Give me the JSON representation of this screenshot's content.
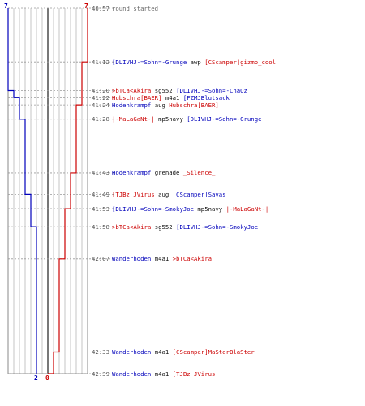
{
  "colors": {
    "team_blue": "#0000bb",
    "team_red": "#cc0000",
    "text_black": "#111111",
    "info_gray": "#666666",
    "time_gray": "#555555",
    "grid_gray": "#b8b8b8",
    "frame_gray": "#888888",
    "center_line": "#555555"
  },
  "scores": {
    "top_left": "7",
    "top_right": "7",
    "bottom_blue": "2",
    "bottom_red": "0"
  },
  "chart_data": {
    "type": "line",
    "y_axis_meaning": "round time (minutes:seconds)",
    "x_axis_meaning": "players remaining per team",
    "xlim": [
      -7,
      7
    ],
    "series": [
      {
        "color": "#0000bb",
        "points": [
          {
            "time": "40:57",
            "alive": 7
          },
          {
            "time": "41:20",
            "alive": 6
          },
          {
            "time": "41:22",
            "alive": 5
          },
          {
            "time": "41:28",
            "alive": 4
          },
          {
            "time": "41:49",
            "alive": 3
          },
          {
            "time": "41:58",
            "alive": 2
          },
          {
            "time": "42:39",
            "alive": 2
          }
        ]
      },
      {
        "color": "#cc0000",
        "points": [
          {
            "time": "40:57",
            "alive": 7
          },
          {
            "time": "41:12",
            "alive": 6
          },
          {
            "time": "41:24",
            "alive": 5
          },
          {
            "time": "41:43",
            "alive": 4
          },
          {
            "time": "41:53",
            "alive": 3
          },
          {
            "time": "42:07",
            "alive": 2
          },
          {
            "time": "42:33",
            "alive": 1
          },
          {
            "time": "42:39",
            "alive": 0
          }
        ]
      }
    ]
  },
  "events": [
    {
      "time": "40:57",
      "parts": [
        {
          "text": "round started",
          "color": "gray"
        }
      ]
    },
    {
      "time": "41:12",
      "parts": [
        {
          "text": "[DLIVHJ-=Sohn=-Grunge",
          "color": "blue"
        },
        {
          "text": " awp ",
          "color": "black"
        },
        {
          "text": "[CScamper]gizmo_cool",
          "color": "red"
        }
      ]
    },
    {
      "time": "41:20",
      "parts": [
        {
          "text": ">bTCa<Akira",
          "color": "red"
        },
        {
          "text": " sg552 ",
          "color": "black"
        },
        {
          "text": "[DLIVHJ-=Sohn=-ChaOz",
          "color": "blue"
        }
      ]
    },
    {
      "time": "41:22",
      "parts": [
        {
          "text": "Hubschra[BAER]",
          "color": "red"
        },
        {
          "text": " m4a1 ",
          "color": "black"
        },
        {
          "text": "[FZMJBlutsack",
          "color": "blue"
        }
      ]
    },
    {
      "time": "41:24",
      "parts": [
        {
          "text": "Hodenkrampf",
          "color": "blue"
        },
        {
          "text": " aug ",
          "color": "black"
        },
        {
          "text": "Hubschra[BAER]",
          "color": "red"
        }
      ]
    },
    {
      "time": "41:28",
      "parts": [
        {
          "text": "|-MaLaGaNt-|",
          "color": "red"
        },
        {
          "text": " mp5navy ",
          "color": "black"
        },
        {
          "text": "[DLIVHJ-=Sohn=-Grunge",
          "color": "blue"
        }
      ]
    },
    {
      "time": "41:43",
      "parts": [
        {
          "text": "Hodenkrampf",
          "color": "blue"
        },
        {
          "text": " grenade ",
          "color": "black"
        },
        {
          "text": "_Silence_",
          "color": "red"
        }
      ]
    },
    {
      "time": "41:49",
      "parts": [
        {
          "text": "[TJBz JVirus",
          "color": "red"
        },
        {
          "text": " aug ",
          "color": "black"
        },
        {
          "text": "[CScamper]Savas",
          "color": "blue"
        }
      ]
    },
    {
      "time": "41:53",
      "parts": [
        {
          "text": "[DLIVHJ-=Sohn=-SmokyJoe",
          "color": "blue"
        },
        {
          "text": " mp5navy ",
          "color": "black"
        },
        {
          "text": "|-MaLaGaNt-|",
          "color": "red"
        }
      ]
    },
    {
      "time": "41:58",
      "parts": [
        {
          "text": ">bTCa<Akira",
          "color": "red"
        },
        {
          "text": " sg552 ",
          "color": "black"
        },
        {
          "text": "[DLIVHJ-=Sohn=-SmokyJoe",
          "color": "blue"
        }
      ]
    },
    {
      "time": "42:07",
      "parts": [
        {
          "text": "Wanderhoden",
          "color": "blue"
        },
        {
          "text": " m4a1 ",
          "color": "black"
        },
        {
          "text": ">bTCa<Akira",
          "color": "red"
        }
      ]
    },
    {
      "time": "42:33",
      "parts": [
        {
          "text": "Wanderhoden",
          "color": "blue"
        },
        {
          "text": " m4a1 ",
          "color": "black"
        },
        {
          "text": "[CScamper]MaSterBlaSter",
          "color": "red"
        }
      ]
    },
    {
      "time": "42:39",
      "parts": [
        {
          "text": "Wanderhoden",
          "color": "blue"
        },
        {
          "text": " m4a1 ",
          "color": "black"
        },
        {
          "text": "[TJBz JVirus",
          "color": "red"
        }
      ]
    }
  ]
}
